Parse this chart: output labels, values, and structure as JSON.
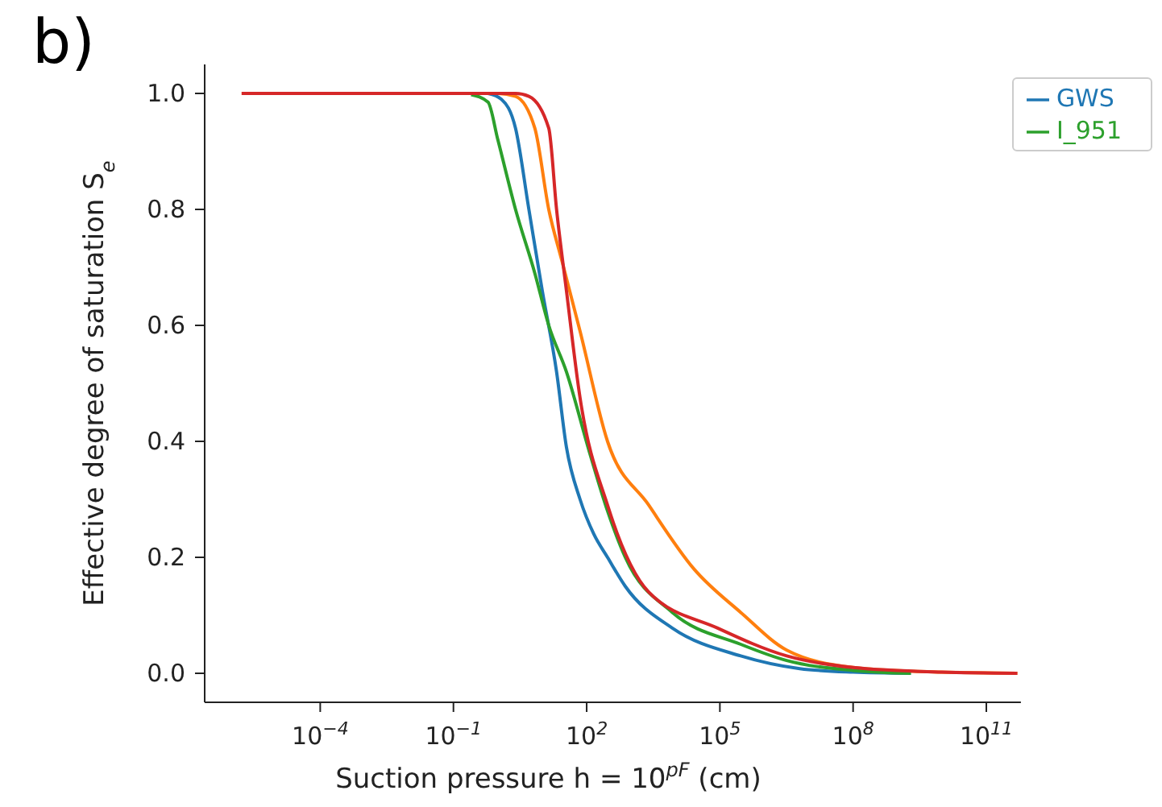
{
  "chart_data": {
    "type": "line",
    "title": "b)",
    "xlabel": "Suction pressure h = 10$^{pF}$ (cm)",
    "ylabel": "Effective degree of saturation S$_{e}$",
    "log": "x",
    "xlim": [
      2.5e-07,
      600000000000.0
    ],
    "xticks": [
      {
        "value": 0.0001,
        "label": "10$^{−4}$"
      },
      {
        "value": 0.1,
        "label": "10$^{−1}$"
      },
      {
        "value": 100,
        "label": "10$^{2}$"
      },
      {
        "value": 100000,
        "label": "10$^{5}$"
      },
      {
        "value": 100000000,
        "label": "10$^{8}$"
      },
      {
        "value": 100000000000,
        "label": "10$^{11}$"
      }
    ],
    "ylim": [
      -0.05,
      1.05
    ],
    "yticks": [
      {
        "value": 0,
        "label": "0.0"
      },
      {
        "value": 0.2,
        "label": "0.2"
      },
      {
        "value": 0.4,
        "label": "0.4"
      },
      {
        "value": 0.6,
        "label": "0.6"
      },
      {
        "value": 0.8,
        "label": "0.8"
      },
      {
        "value": 1,
        "label": "1.0"
      }
    ],
    "grid": false,
    "legend": "top right",
    "marker": "none",
    "line_style": "solid",
    "series": [
      {
        "name": "GWS",
        "color": "#1f77b4",
        "x": [
          0.6,
          1.2,
          2.5,
          5,
          10,
          21,
          35,
          71,
          145,
          295,
          741,
          8500,
          295000,
          6300000,
          100000000,
          2000000000
        ],
        "values": [
          1,
          0.99,
          0.94,
          0.8,
          0.66,
          0.52,
          0.39,
          0.3,
          0.24,
          0.2,
          0.15,
          0.078,
          0.03,
          0.008,
          0.002,
          0
        ]
      },
      {
        "color": "#ff7f0e",
        "x": [
          1.7e-06,
          1,
          2.5,
          6.8,
          14,
          28,
          71,
          295,
          2500,
          26000,
          295000,
          3200000,
          100000000,
          3200000000,
          500000000000
        ],
        "values": [
          1,
          1,
          0.995,
          0.94,
          0.8,
          0.71,
          0.59,
          0.4,
          0.29,
          0.18,
          0.105,
          0.04,
          0.01,
          0.003,
          0
        ]
      },
      {
        "name": "I_951",
        "color": "#2ca02c",
        "x": [
          0.25,
          0.6,
          1,
          2.5,
          6.8,
          14,
          35,
          117,
          295,
          741,
          8500,
          295000,
          3200000,
          100000000,
          2000000000
        ],
        "values": [
          0.998,
          0.985,
          0.92,
          0.8,
          0.69,
          0.6,
          0.52,
          0.38,
          0.28,
          0.2,
          0.105,
          0.05,
          0.022,
          0.005,
          0
        ]
      },
      {
        "color": "#d62728",
        "x": [
          1.7e-06,
          2.5,
          5,
          14,
          21,
          35,
          71,
          295,
          2500,
          89000,
          3200000,
          100000000,
          10000000000,
          500000000000
        ],
        "values": [
          1,
          1,
          0.995,
          0.94,
          0.8,
          0.66,
          0.475,
          0.29,
          0.14,
          0.078,
          0.03,
          0.01,
          0.002,
          0
        ]
      }
    ]
  }
}
